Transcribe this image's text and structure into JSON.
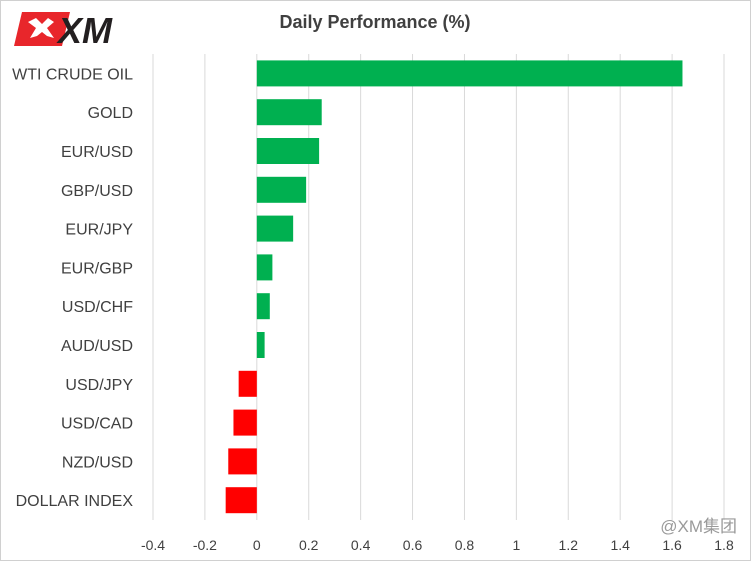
{
  "brand": {
    "logo_text": "XM",
    "accent": "#e8262b",
    "dark": "#231f20"
  },
  "watermark": "@XM集团",
  "chart_data": {
    "type": "bar",
    "orientation": "horizontal",
    "title": "Daily Performance (%)",
    "xlabel": "",
    "ylabel": "",
    "categories": [
      "WTI CRUDE OIL",
      "GOLD",
      "EUR/USD",
      "GBP/USD",
      "EUR/JPY",
      "EUR/GBP",
      "USD/CHF",
      "AUD/USD",
      "USD/JPY",
      "USD/CAD",
      "NZD/USD",
      "DOLLAR INDEX"
    ],
    "values": [
      1.64,
      0.25,
      0.24,
      0.19,
      0.14,
      0.06,
      0.05,
      0.03,
      -0.07,
      -0.09,
      -0.11,
      -0.12
    ],
    "xlim": [
      -0.4,
      1.8
    ],
    "xticks": [
      -0.4,
      -0.2,
      0,
      0.2,
      0.4,
      0.6,
      0.8,
      1,
      1.2,
      1.4,
      1.6,
      1.8
    ],
    "xtick_labels": [
      "-0.4",
      "-0.2",
      "0",
      "0.2",
      "0.4",
      "0.6",
      "0.8",
      "1",
      "1.2",
      "1.4",
      "1.6",
      "1.8"
    ],
    "grid": "vertical",
    "legend": "none",
    "colors": {
      "positive": "#00b050",
      "negative": "#ff0000",
      "grid": "#d9d9d9"
    }
  }
}
